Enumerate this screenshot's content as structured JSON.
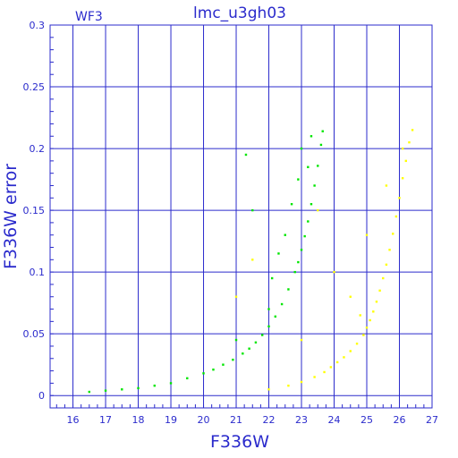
{
  "chart_data": {
    "type": "scatter",
    "title": "lmc_u3gh03",
    "panel_label": "WF3",
    "xlabel": "F336W",
    "ylabel": "F336W error",
    "xlim": [
      15.3,
      27
    ],
    "ylim": [
      -0.01,
      0.3
    ],
    "x_ticks": [
      16,
      17,
      18,
      19,
      20,
      21,
      22,
      23,
      24,
      25,
      26,
      27
    ],
    "y_ticks": [
      0,
      0.05,
      0.1,
      0.15,
      0.2,
      0.25,
      0.3
    ],
    "x_tick_labels": [
      "16",
      "17",
      "18",
      "19",
      "20",
      "21",
      "22",
      "23",
      "24",
      "25",
      "26",
      "27"
    ],
    "y_tick_labels": [
      "0",
      "0.05",
      "0.1",
      "0.15",
      "0.2",
      "0.25",
      "0.3"
    ],
    "grid": true,
    "colors": {
      "frame": "#2b2bcc",
      "grid": "#2b2bcc",
      "text": "#2b2bcc",
      "series_green": "#00e600",
      "series_yellow": "#ffff00"
    },
    "series": [
      {
        "color": "#00e600",
        "x": [
          16.5,
          17.0,
          17.5,
          18.0,
          18.5,
          19.0,
          19.5,
          20.0,
          20.3,
          20.6,
          20.9,
          21.2,
          21.4,
          21.6,
          21.8,
          22.0,
          22.2,
          22.4,
          22.6,
          22.8,
          22.9,
          23.0,
          23.1,
          23.2,
          23.3,
          23.4,
          23.5,
          23.6,
          23.65,
          21.3,
          21.5,
          22.1,
          22.3,
          22.5,
          22.7,
          22.9,
          23.0,
          23.2,
          23.3,
          21.0,
          22.0
        ],
        "y": [
          0.003,
          0.004,
          0.005,
          0.006,
          0.008,
          0.01,
          0.014,
          0.018,
          0.021,
          0.025,
          0.029,
          0.034,
          0.038,
          0.043,
          0.049,
          0.056,
          0.064,
          0.074,
          0.086,
          0.1,
          0.108,
          0.118,
          0.129,
          0.141,
          0.155,
          0.17,
          0.186,
          0.203,
          0.214,
          0.195,
          0.15,
          0.095,
          0.115,
          0.13,
          0.155,
          0.175,
          0.2,
          0.185,
          0.21,
          0.045,
          0.07
        ]
      },
      {
        "color": "#ffff00",
        "x": [
          22.0,
          22.6,
          23.0,
          23.4,
          23.7,
          23.9,
          24.1,
          24.3,
          24.5,
          24.7,
          24.9,
          25.0,
          25.1,
          25.2,
          25.3,
          25.4,
          25.5,
          25.6,
          25.7,
          25.8,
          25.9,
          26.0,
          26.1,
          26.2,
          26.3,
          26.4,
          23.0,
          23.5,
          24.0,
          24.5,
          25.0,
          21.5,
          21.0,
          25.6,
          26.1,
          24.8
        ],
        "y": [
          0.005,
          0.008,
          0.011,
          0.015,
          0.019,
          0.023,
          0.027,
          0.031,
          0.036,
          0.042,
          0.049,
          0.055,
          0.061,
          0.068,
          0.076,
          0.085,
          0.095,
          0.106,
          0.118,
          0.131,
          0.145,
          0.16,
          0.176,
          0.19,
          0.205,
          0.215,
          0.045,
          0.15,
          0.1,
          0.08,
          0.13,
          0.11,
          0.08,
          0.17,
          0.2,
          0.065
        ]
      }
    ]
  }
}
